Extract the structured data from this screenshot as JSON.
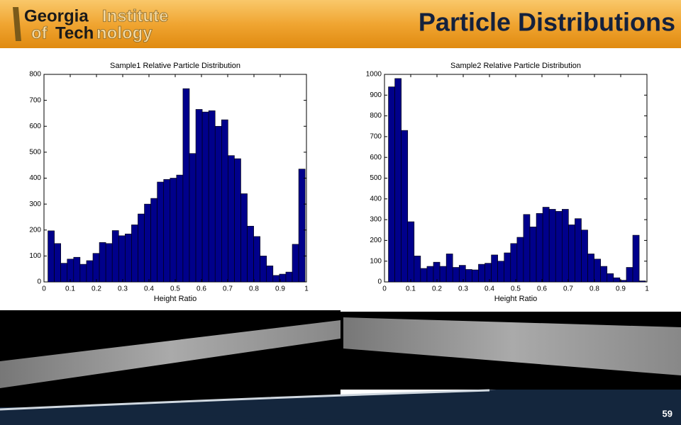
{
  "header": {
    "title": "Particle Distributions",
    "logo": {
      "georgia": "Georgia",
      "institute": "Institute",
      "of": "of",
      "tech": "Tech",
      "nology": "nology"
    }
  },
  "page_number": "59",
  "chart_data": [
    {
      "type": "histogram",
      "title": "Sample1 Relative Particle Distribution",
      "x_label": "Height Ratio",
      "color": "#00008b",
      "bins": [
        0.015,
        0.0395,
        0.064,
        0.0885,
        0.113,
        0.1375,
        0.162,
        0.1865,
        0.211,
        0.2355,
        0.26,
        0.2845,
        0.309,
        0.3335,
        0.358,
        0.3825,
        0.407,
        0.4315,
        0.456,
        0.4805,
        0.505,
        0.5295,
        0.554,
        0.5785,
        0.603,
        0.6275,
        0.652,
        0.6765,
        0.701,
        0.7255,
        0.75,
        0.7745,
        0.799,
        0.8235,
        0.848,
        0.8725,
        0.897,
        0.9215,
        0.946,
        0.9705,
        0.995
      ],
      "values": [
        197,
        148,
        72,
        88,
        95,
        68,
        82,
        110,
        152,
        148,
        198,
        178,
        185,
        220,
        262,
        300,
        322,
        385,
        395,
        400,
        412,
        745,
        495,
        665,
        655,
        660,
        600,
        625,
        487,
        475,
        340,
        215,
        175,
        100,
        62,
        25,
        30,
        38,
        145,
        435
      ],
      "xlim": [
        0,
        1
      ],
      "xticks": [
        0,
        0.1,
        0.2,
        0.3,
        0.4,
        0.5,
        0.6,
        0.7,
        0.8,
        0.9,
        1
      ],
      "ylim": [
        0,
        800
      ],
      "yticks": [
        0,
        100,
        200,
        300,
        400,
        500,
        600,
        700,
        800
      ]
    },
    {
      "type": "histogram",
      "title": "Sample2 Relative Particle Distribution",
      "x_label": "Height Ratio",
      "color": "#00008b",
      "bins": [
        0.015,
        0.0395,
        0.064,
        0.0885,
        0.113,
        0.1375,
        0.162,
        0.1865,
        0.211,
        0.2355,
        0.26,
        0.2845,
        0.309,
        0.3335,
        0.358,
        0.3825,
        0.407,
        0.4315,
        0.456,
        0.4805,
        0.505,
        0.5295,
        0.554,
        0.5785,
        0.603,
        0.6275,
        0.652,
        0.6765,
        0.701,
        0.7255,
        0.75,
        0.7745,
        0.799,
        0.8235,
        0.848,
        0.8725,
        0.897,
        0.9215,
        0.946,
        0.9705,
        0.995
      ],
      "values": [
        940,
        980,
        730,
        290,
        125,
        65,
        75,
        95,
        75,
        135,
        70,
        80,
        60,
        58,
        85,
        90,
        130,
        100,
        140,
        185,
        215,
        325,
        265,
        330,
        360,
        350,
        340,
        350,
        275,
        305,
        250,
        135,
        110,
        75,
        40,
        20,
        8,
        70,
        225,
        5
      ],
      "xlim": [
        0,
        1
      ],
      "xticks": [
        0,
        0.1,
        0.2,
        0.3,
        0.4,
        0.5,
        0.6,
        0.7,
        0.8,
        0.9,
        1
      ],
      "ylim": [
        0,
        1000
      ],
      "yticks": [
        0,
        100,
        200,
        300,
        400,
        500,
        600,
        700,
        800,
        900,
        1000
      ]
    }
  ]
}
